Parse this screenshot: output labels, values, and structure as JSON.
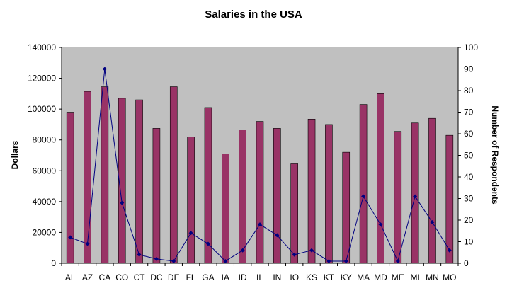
{
  "chart_data": {
    "type": "bar",
    "title": "Salaries in the USA",
    "xlabel": "",
    "ylabel": "Dollars",
    "y2label": "Number of Respondents",
    "categories": [
      "AL",
      "AZ",
      "CA",
      "CO",
      "CT",
      "DC",
      "DE",
      "FL",
      "GA",
      "IA",
      "ID",
      "IL",
      "IN",
      "IO",
      "KS",
      "KT",
      "KY",
      "MA",
      "MD",
      "ME",
      "MI",
      "MN",
      "MO"
    ],
    "ylim": [
      0,
      140000
    ],
    "yticks": [
      "0",
      "20000",
      "40000",
      "60000",
      "80000",
      "100000",
      "120000",
      "140000"
    ],
    "y2lim": [
      0,
      100
    ],
    "y2ticks": [
      "0",
      "10",
      "20",
      "30",
      "40",
      "50",
      "60",
      "70",
      "80",
      "90",
      "100"
    ],
    "grid": false,
    "legend": "none",
    "series": [
      {
        "type": "bar",
        "axis": "left",
        "color": "#993366",
        "values": [
          98000,
          111500,
          114500,
          107000,
          106000,
          87500,
          114500,
          82000,
          101000,
          71000,
          86500,
          92000,
          87500,
          64500,
          93500,
          90000,
          72000,
          103000,
          110000,
          85500,
          91000,
          94000,
          83000
        ]
      },
      {
        "type": "line",
        "axis": "right",
        "color": "#000080",
        "values": [
          12,
          9,
          90,
          28,
          4,
          2,
          1,
          14,
          9,
          1,
          6,
          18,
          13,
          4,
          6,
          1,
          1,
          31,
          18,
          1,
          31,
          19,
          6
        ]
      }
    ],
    "colors": {
      "plot_background": "#c0c0c0",
      "bar": "#993366",
      "line": "#000080"
    }
  }
}
